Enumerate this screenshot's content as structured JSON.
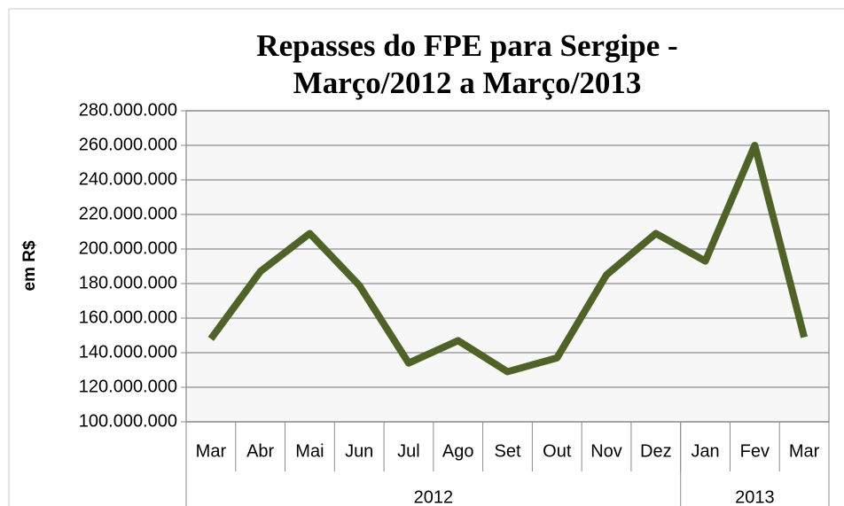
{
  "chart_data": {
    "type": "line",
    "title": [
      "Repasses do FPE para Sergipe -",
      "Março/2012 a Março/2013"
    ],
    "y_label": "em R$",
    "categories": [
      "Mar",
      "Abr",
      "Mai",
      "Jun",
      "Jul",
      "Ago",
      "Set",
      "Out",
      "Nov",
      "Dez",
      "Jan",
      "Fev",
      "Mar"
    ],
    "groups": [
      {
        "name": "2012",
        "count": 10
      },
      {
        "name": "2013",
        "count": 3
      }
    ],
    "series": [
      {
        "name": "Repasses",
        "color": "#4f6228",
        "values": [
          148000000,
          187000000,
          209000000,
          179000000,
          134000000,
          147000000,
          129000000,
          137000000,
          185000000,
          209000000,
          193000000,
          260000000,
          149000000
        ]
      }
    ],
    "ylim": [
      100000000,
      280000000
    ],
    "yticks": [
      {
        "value": 100000000,
        "label": "100.000.000"
      },
      {
        "value": 120000000,
        "label": "120.000.000"
      },
      {
        "value": 140000000,
        "label": "140.000.000"
      },
      {
        "value": 160000000,
        "label": "160.000.000"
      },
      {
        "value": 180000000,
        "label": "180.000.000"
      },
      {
        "value": 200000000,
        "label": "200.000.000"
      },
      {
        "value": 220000000,
        "label": "220.000.000"
      },
      {
        "value": 240000000,
        "label": "240.000.000"
      },
      {
        "value": 260000000,
        "label": "260.000.000"
      },
      {
        "value": 280000000,
        "label": "280.000.000"
      }
    ],
    "grid": true
  }
}
